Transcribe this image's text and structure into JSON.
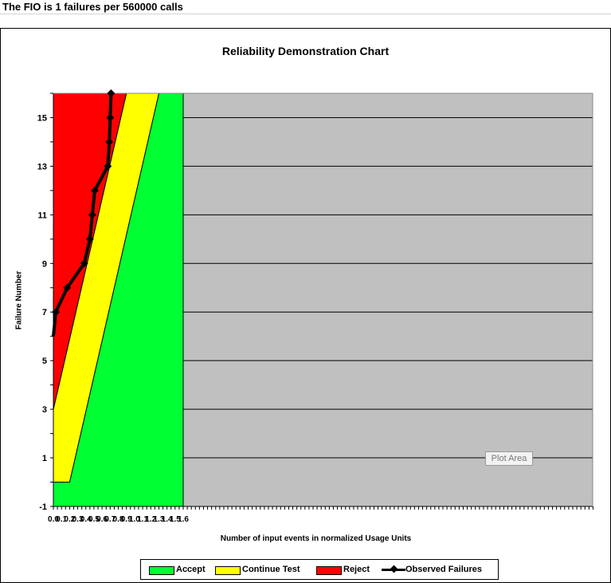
{
  "sheet": {
    "header_text": "The FIO is 1 failures per 560000 calls"
  },
  "tooltip": {
    "plot_area": "Plot Area"
  },
  "colors": {
    "accept": "#00ff33",
    "continue": "#ffff00",
    "reject": "#ff0000",
    "background": "#c0c0c0",
    "observed": "#000000"
  },
  "chart_data": {
    "type": "area",
    "title": "Reliability Demonstration Chart",
    "xlabel": "Number of input events in normalized Usage Units",
    "ylabel": "Failure Number",
    "xlim": [
      0,
      16
    ],
    "ylim": [
      -1,
      16
    ],
    "xticks": [
      "0.0",
      "0.1",
      "0.2",
      "0.3",
      "0.4",
      "0.5",
      "0.6",
      "0.7",
      "0.8",
      "0.9",
      "1.0",
      "1.1",
      "1.2",
      "1.3",
      "1.4",
      "1.5",
      "1.6"
    ],
    "yticks": [
      -1,
      1,
      3,
      5,
      7,
      9,
      11,
      13,
      15
    ],
    "regions": [
      {
        "name": "Reject",
        "color": "#ff0000"
      },
      {
        "name": "Continue Test",
        "color": "#ffff00"
      },
      {
        "name": "Accept",
        "color": "#00ff33"
      }
    ],
    "reject_boundary": [
      [
        0.0,
        3.0
      ],
      [
        0.9,
        16.0
      ]
    ],
    "accept_boundary": [
      [
        0.0,
        0.0
      ],
      [
        0.2,
        0.0
      ],
      [
        1.3,
        16.0
      ]
    ],
    "accept_region_right_edge": 1.6,
    "series": [
      {
        "name": "Observed Failures",
        "x": [
          0.0,
          0.03,
          0.17,
          0.38,
          0.45,
          0.48,
          0.51,
          0.67,
          0.69,
          0.7,
          0.71
        ],
        "y": [
          6,
          7,
          8,
          9,
          10,
          11,
          12,
          13,
          14,
          15,
          16
        ]
      }
    ],
    "legend": [
      "Accept",
      "Continue Test",
      "Reject",
      "Observed Failures"
    ]
  }
}
